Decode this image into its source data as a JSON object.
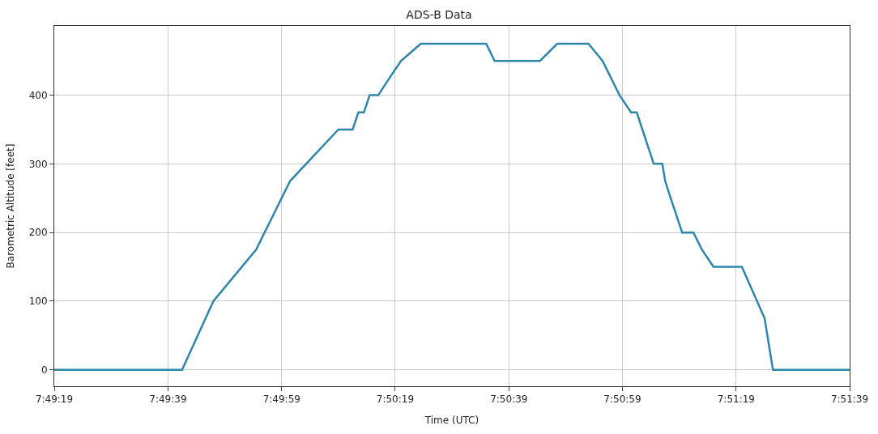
{
  "chart_data": {
    "type": "line",
    "title": "ADS-B Data",
    "xlabel": "Time (UTC)",
    "ylabel": "Barometric Altitude [feet]",
    "series": [
      {
        "color": "#2e86ab",
        "x": [
          7.82194,
          7.82819,
          7.82972,
          7.83181,
          7.83347,
          7.83583,
          7.83653,
          7.83681,
          7.83708,
          7.83736,
          7.83778,
          7.83833,
          7.83889,
          7.83986,
          7.84306,
          7.84347,
          7.84569,
          7.84653,
          7.84806,
          7.84875,
          7.84958,
          7.85014,
          7.85042,
          7.85125,
          7.85167,
          7.85181,
          7.85208,
          7.85264,
          7.85319,
          7.85361,
          7.85417,
          7.85556,
          7.85667,
          7.85708,
          7.86083
        ],
        "values": [
          0,
          0,
          100,
          175,
          275,
          350,
          350,
          375,
          375,
          400,
          400,
          425,
          450,
          475,
          475,
          450,
          450,
          475,
          475,
          450,
          400,
          375,
          375,
          300,
          300,
          275,
          250,
          200,
          200,
          175,
          150,
          150,
          75,
          0,
          0
        ]
      }
    ],
    "xlim": [
      7.82194,
      7.86083
    ],
    "xticks": [
      {
        "value": 7.82194,
        "label": "7:49:19"
      },
      {
        "value": 7.8275,
        "label": "7:49:39"
      },
      {
        "value": 7.83306,
        "label": "7:49:59"
      },
      {
        "value": 7.83861,
        "label": "7:50:19"
      },
      {
        "value": 7.84417,
        "label": "7:50:39"
      },
      {
        "value": 7.84972,
        "label": "7:50:59"
      },
      {
        "value": 7.85528,
        "label": "7:51:19"
      },
      {
        "value": 7.86083,
        "label": "7:51:39"
      }
    ],
    "ylim": [
      -24,
      501
    ],
    "yticks": [
      0,
      100,
      200,
      300,
      400
    ],
    "grid": true,
    "marker": "none",
    "line_style": "solid"
  }
}
